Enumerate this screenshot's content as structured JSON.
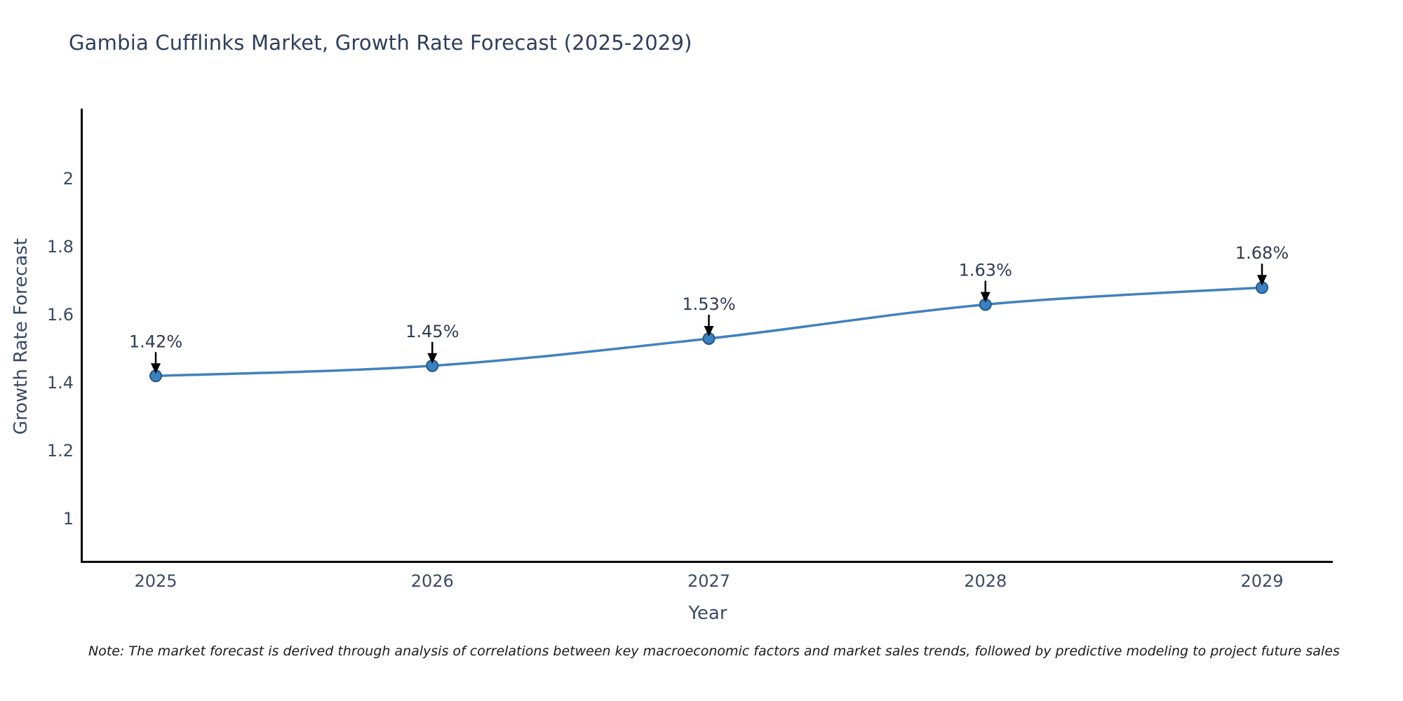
{
  "title": {
    "text": "Gambia Cufflinks Market, Growth Rate Forecast (2025-2029)"
  },
  "note": {
    "text": "Note: The market forecast is derived through analysis of correlations between key macroeconomic factors and market sales trends, followed by predictive modeling to project future sales"
  },
  "chart_data": {
    "type": "line",
    "x": [
      "2025",
      "2026",
      "2027",
      "2028",
      "2029"
    ],
    "series": [
      {
        "name": "Growth Rate Forecast",
        "values": [
          1.42,
          1.45,
          1.53,
          1.63,
          1.68
        ]
      }
    ],
    "point_labels": [
      "1.42%",
      "1.45%",
      "1.53%",
      "1.63%",
      "1.68%"
    ],
    "title": "Gambia Cufflinks Market, Growth Rate Forecast (2025-2029)",
    "xlabel": "Year",
    "ylabel": "Growth Rate Forecast",
    "yticks": [
      "1",
      "1.2",
      "1.4",
      "1.6",
      "1.8",
      "2"
    ],
    "ylim": [
      0.88,
      2.21
    ],
    "grid": false,
    "legend_position": "none",
    "annotations_have_arrows": true,
    "colors": {
      "line": "#4181bd",
      "marker_fill": "#3a80c2",
      "marker_edge": "#28587f",
      "axis_spine": "#000000",
      "tick_label": "#3b4a63",
      "annotation_text": "#303c52",
      "arrow": "#000000"
    }
  }
}
